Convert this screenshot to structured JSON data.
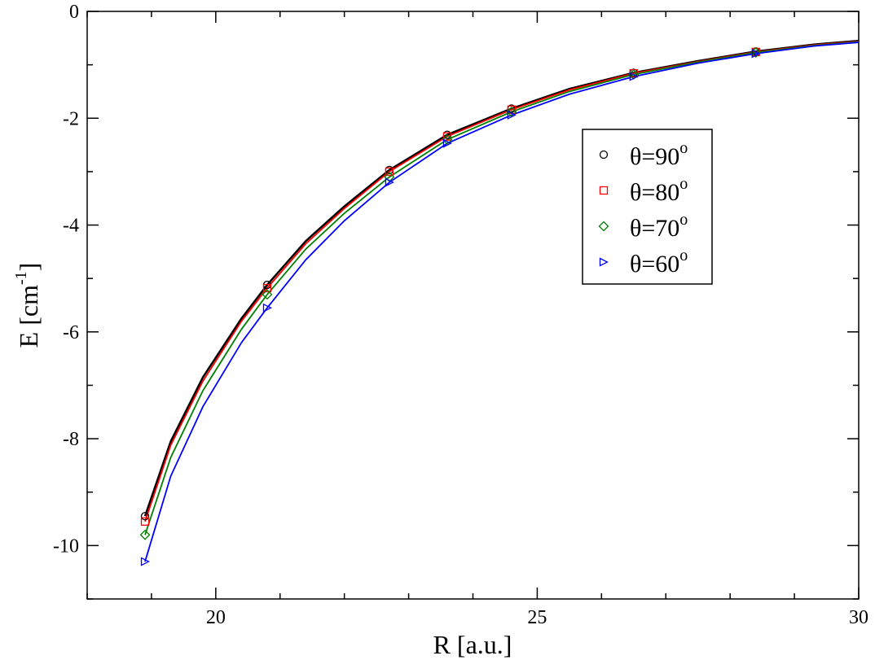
{
  "chart_data": {
    "type": "line",
    "xlabel": "R [a.u.]",
    "ylabel": {
      "main": "E [cm",
      "sup": "-1",
      "close": "]"
    },
    "xlim": [
      18,
      30
    ],
    "ylim": [
      -11,
      0
    ],
    "x_ticks": [
      "20",
      "25",
      "30"
    ],
    "y_ticks": [
      "0",
      "-2",
      "-4",
      "-6",
      "-8",
      "-10"
    ],
    "grid": false,
    "legend_position": "right",
    "series": [
      {
        "name": {
          "main": "θ=90",
          "sup": "o"
        },
        "color": "#000000",
        "marker": "circle",
        "x": [
          18.9,
          20.8,
          22.7,
          23.6,
          24.6,
          26.5,
          28.4
        ],
        "y": [
          -9.45,
          -5.12,
          -2.97,
          -2.31,
          -1.82,
          -1.15,
          -0.75
        ],
        "line_x": [
          18.9,
          19.3,
          19.8,
          20.4,
          20.8,
          21.4,
          22.0,
          22.7,
          23.6,
          24.6,
          25.5,
          26.5,
          27.5,
          28.4,
          29.3,
          30.0
        ],
        "line_y": [
          -9.45,
          -8.05,
          -6.85,
          -5.75,
          -5.12,
          -4.3,
          -3.65,
          -2.97,
          -2.31,
          -1.82,
          -1.45,
          -1.15,
          -0.93,
          -0.75,
          -0.62,
          -0.55
        ]
      },
      {
        "name": {
          "main": "θ=80",
          "sup": "o"
        },
        "color": "#ff0000",
        "marker": "square",
        "x": [
          18.9,
          20.8,
          22.7,
          23.6,
          24.6,
          26.5,
          28.4
        ],
        "y": [
          -9.55,
          -5.18,
          -3.0,
          -2.34,
          -1.84,
          -1.16,
          -0.76
        ],
        "line_x": [
          18.9,
          19.3,
          19.8,
          20.4,
          20.8,
          21.4,
          22.0,
          22.7,
          23.6,
          24.6,
          25.5,
          26.5,
          27.5,
          28.4,
          29.3,
          30.0
        ],
        "line_y": [
          -9.55,
          -8.12,
          -6.92,
          -5.8,
          -5.18,
          -4.35,
          -3.69,
          -3.0,
          -2.34,
          -1.84,
          -1.47,
          -1.16,
          -0.94,
          -0.76,
          -0.63,
          -0.56
        ]
      },
      {
        "name": {
          "main": "θ=70",
          "sup": "o"
        },
        "color": "#008000",
        "marker": "diamond",
        "x": [
          18.9,
          20.8,
          22.7,
          23.6,
          24.6,
          26.5,
          28.4
        ],
        "y": [
          -9.8,
          -5.3,
          -3.1,
          -2.4,
          -1.88,
          -1.18,
          -0.77
        ],
        "line_x": [
          18.9,
          19.3,
          19.8,
          20.4,
          20.8,
          21.4,
          22.0,
          22.7,
          23.6,
          24.6,
          25.5,
          26.5,
          27.5,
          28.4,
          29.3,
          30.0
        ],
        "line_y": [
          -9.8,
          -8.35,
          -7.1,
          -5.95,
          -5.3,
          -4.45,
          -3.78,
          -3.1,
          -2.4,
          -1.88,
          -1.5,
          -1.18,
          -0.95,
          -0.77,
          -0.64,
          -0.57
        ]
      },
      {
        "name": {
          "main": "θ=60",
          "sup": "o"
        },
        "color": "#0000ff",
        "marker": "triangle-right",
        "x": [
          18.9,
          20.8,
          22.7,
          23.6,
          24.6,
          26.5,
          28.4
        ],
        "y": [
          -10.3,
          -5.55,
          -3.2,
          -2.47,
          -1.94,
          -1.22,
          -0.79
        ],
        "line_x": [
          18.9,
          19.3,
          19.8,
          20.4,
          20.8,
          21.4,
          22.0,
          22.7,
          23.6,
          24.6,
          25.5,
          26.5,
          27.5,
          28.4,
          29.3,
          30.0
        ],
        "line_y": [
          -10.3,
          -8.7,
          -7.4,
          -6.2,
          -5.55,
          -4.65,
          -3.92,
          -3.2,
          -2.47,
          -1.94,
          -1.55,
          -1.22,
          -0.97,
          -0.79,
          -0.65,
          -0.58
        ]
      }
    ]
  }
}
